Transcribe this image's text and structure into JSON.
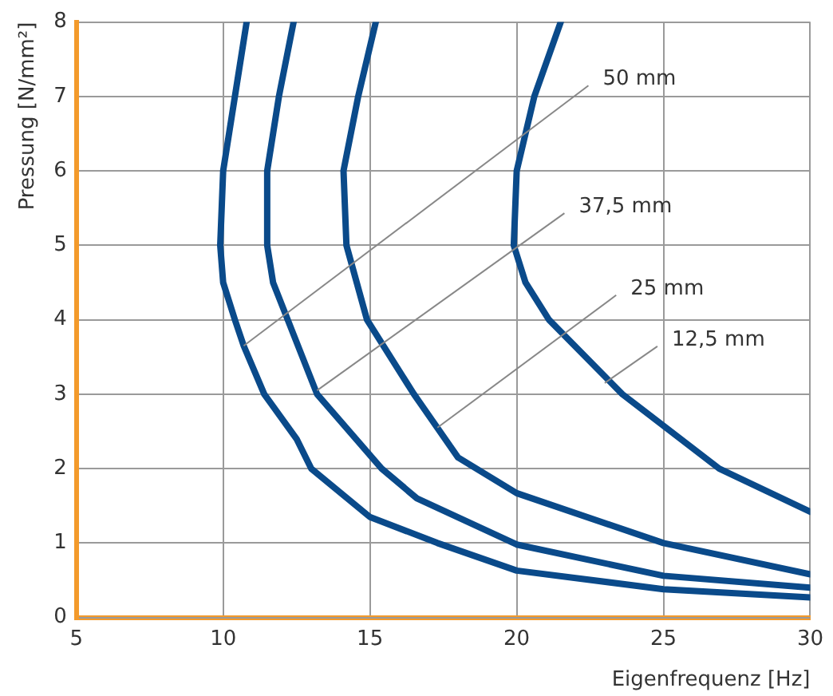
{
  "chart_data": {
    "type": "line",
    "xlabel": "Eigenfrequenz [Hz]",
    "ylabel": "Pressung [N/mm²]",
    "xlim": [
      5,
      30
    ],
    "xticks": [
      5,
      10,
      15,
      20,
      25,
      30
    ],
    "ylim": [
      0,
      8
    ],
    "yticks": [
      0,
      1,
      2,
      3,
      4,
      5,
      6,
      7,
      8
    ],
    "grid": true,
    "legend": false,
    "marker": "none",
    "line_style": "solid",
    "series": [
      {
        "color": "#0a4a8a",
        "x": [
          10.8,
          10.4,
          10.0,
          9.9,
          10.0,
          10.4,
          10.7,
          11.4,
          12.5,
          13.0,
          15.0,
          17.3,
          20.0,
          25.0,
          30.0
        ],
        "values": [
          8,
          7,
          6,
          5,
          4.5,
          4,
          3.65,
          3,
          2.4,
          2,
          1.35,
          1,
          0.63,
          0.38,
          0.27
        ]
      },
      {
        "color": "#0a4a8a",
        "x": [
          12.4,
          11.9,
          11.5,
          11.5,
          11.7,
          12.2,
          13.2,
          15.4,
          16.6,
          20.0,
          25.0,
          30.0
        ],
        "values": [
          8,
          7,
          6,
          5,
          4.5,
          4,
          3,
          2,
          1.6,
          0.98,
          0.56,
          0.4
        ]
      },
      {
        "color": "#0a4a8a",
        "x": [
          15.2,
          14.6,
          14.1,
          14.2,
          14.9,
          16.5,
          18.0,
          20.0,
          25.0,
          30.0
        ],
        "values": [
          8,
          7,
          6,
          5,
          4,
          3,
          2.15,
          1.67,
          1.0,
          0.58
        ]
      },
      {
        "color": "#0a4a8a",
        "x": [
          21.5,
          20.6,
          20.0,
          19.9,
          20.3,
          21.1,
          23.6,
          26.9,
          30.0
        ],
        "values": [
          8,
          7,
          6,
          5,
          4.5,
          4,
          3,
          2,
          1.42
        ]
      }
    ],
    "annotations": [
      {
        "text": "50 mm",
        "x": 10.7,
        "y": 3.65
      },
      {
        "text": "37,5 mm",
        "x": 13.2,
        "y": 3.05
      },
      {
        "text": "25 mm",
        "x": 17.3,
        "y": 2.55
      },
      {
        "text": "12,5 mm",
        "x": 23.0,
        "y": 3.15
      }
    ]
  }
}
